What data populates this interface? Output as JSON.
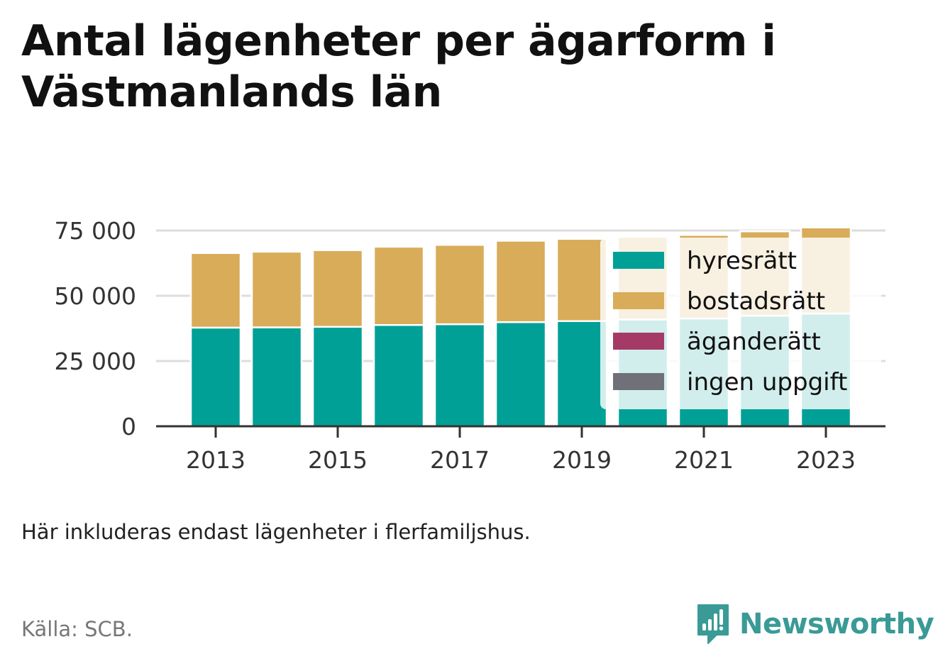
{
  "title": "Antal lägenheter per ägarform i Västmanlands län",
  "note": "Här inkluderas endast lägenheter i flerfamiljshus.",
  "source": "Källa: SCB.",
  "brand": {
    "name": "Newsworthy",
    "icon": "newsworthy-logo-icon",
    "color": "#3a9a96"
  },
  "colors": {
    "hyresratt": "#00a096",
    "bostadsratt": "#d9ac5a",
    "aganderatt": "#a63a66",
    "ingen_uppgift": "#707078",
    "grid": "#dddddd",
    "axis": "#333333"
  },
  "chart_data": {
    "type": "bar",
    "stacked": true,
    "categories": [
      "2013",
      "2014",
      "2015",
      "2016",
      "2017",
      "2018",
      "2019",
      "2020",
      "2021",
      "2022",
      "2023"
    ],
    "x_tick_labels": [
      "2013",
      "2015",
      "2017",
      "2019",
      "2021",
      "2023"
    ],
    "series": [
      {
        "name": "hyresrätt",
        "color": "#00a096",
        "values": [
          37800,
          37900,
          38100,
          38800,
          39100,
          39900,
          40300,
          40900,
          41300,
          42400,
          43200
        ]
      },
      {
        "name": "bostadsrätt",
        "color": "#d9ac5a",
        "values": [
          28600,
          29000,
          29400,
          30000,
          30400,
          31200,
          31500,
          31700,
          32000,
          32300,
          33000
        ]
      },
      {
        "name": "äganderätt",
        "color": "#a63a66",
        "values": [
          100,
          100,
          100,
          100,
          100,
          100,
          100,
          100,
          100,
          100,
          100
        ]
      },
      {
        "name": "ingen uppgift",
        "color": "#707078",
        "values": [
          0,
          0,
          0,
          0,
          0,
          0,
          0,
          0,
          0,
          0,
          0
        ]
      }
    ],
    "y_ticks": [
      0,
      25000,
      50000,
      75000
    ],
    "y_tick_labels": [
      "0",
      "25 000",
      "50 000",
      "75 000"
    ],
    "ylim": [
      0,
      75000
    ],
    "grid": true,
    "legend_position": "right, overlapping the last bars"
  }
}
